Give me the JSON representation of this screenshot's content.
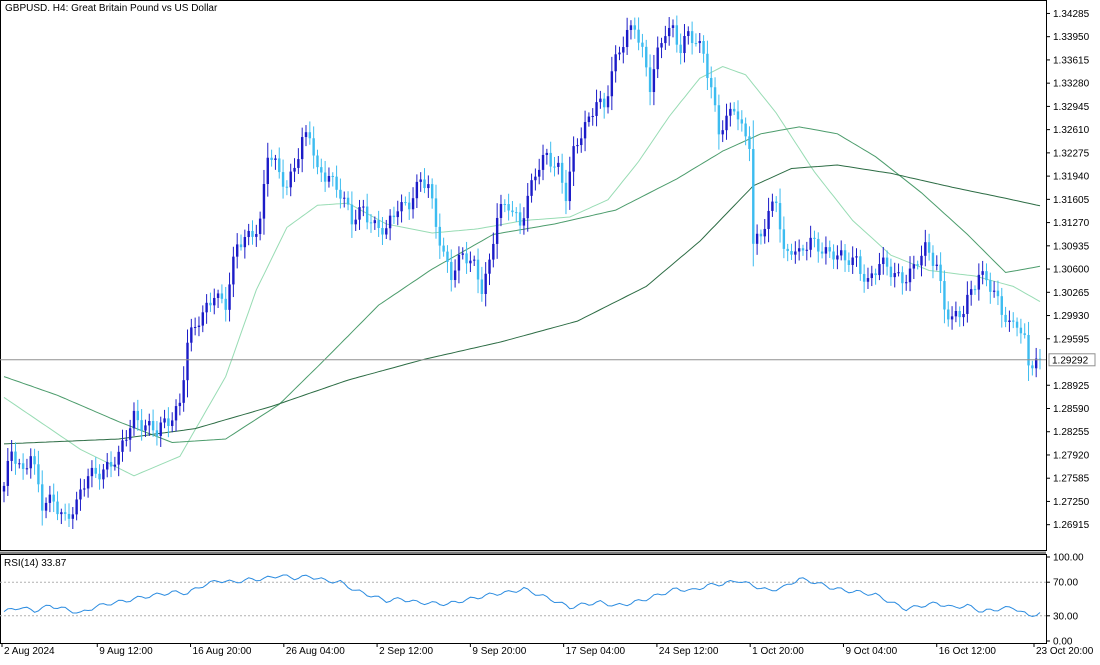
{
  "title": {
    "symbol": "GBPUSD.",
    "timeframe": "H4:",
    "description": "Great Britain Pound vs US Dollar"
  },
  "colors": {
    "background": "#ffffff",
    "bull_candle": "#1c1cc8",
    "bear_candle": "#3cbcf0",
    "ma_fast": "#98dcb4",
    "ma_mid": "#4c9c6c",
    "ma_slow": "#2c6c44",
    "rsi_line": "#2c8ce0",
    "bid_line": "#909090",
    "grid": "#c8c8c8"
  },
  "chart_data": [
    {
      "type": "candlestick",
      "name": "GBPUSD., H4 price",
      "ylim": [
        1.2655,
        1.3445
      ],
      "y_ticks": [
        "1.34285",
        "1.33950",
        "1.33615",
        "1.33280",
        "1.32945",
        "1.32610",
        "1.32275",
        "1.31940",
        "1.31605",
        "1.31270",
        "1.30935",
        "1.30600",
        "1.30265",
        "1.29930",
        "1.29595",
        "1.28925",
        "1.28590",
        "1.28255",
        "1.27920",
        "1.27585",
        "1.27250",
        "1.26915"
      ],
      "current_price_label": "1.29292",
      "current_price": 1.29292,
      "x_tick_labels": [
        "2 Aug 2024",
        "9 Aug 12:00",
        "16 Aug 20:00",
        "26 Aug 04:00",
        "2 Sep 12:00",
        "9 Sep 20:00",
        "17 Sep 04:00",
        "24 Sep 12:00",
        "1 Oct 20:00",
        "9 Oct 04:00",
        "16 Oct 12:00",
        "23 Oct 20:00"
      ],
      "close_anchors": [
        {
          "bar": 0,
          "close": 1.2742
        },
        {
          "bar": 2,
          "close": 1.2795
        },
        {
          "bar": 5,
          "close": 1.277
        },
        {
          "bar": 7,
          "close": 1.28
        },
        {
          "bar": 10,
          "close": 1.2715
        },
        {
          "bar": 13,
          "close": 1.2725
        },
        {
          "bar": 16,
          "close": 1.2705
        },
        {
          "bar": 19,
          "close": 1.2718
        },
        {
          "bar": 22,
          "close": 1.276
        },
        {
          "bar": 26,
          "close": 1.2775
        },
        {
          "bar": 30,
          "close": 1.2785
        },
        {
          "bar": 34,
          "close": 1.285
        },
        {
          "bar": 37,
          "close": 1.2838
        },
        {
          "bar": 40,
          "close": 1.2822
        },
        {
          "bar": 43,
          "close": 1.284
        },
        {
          "bar": 46,
          "close": 1.287
        },
        {
          "bar": 48,
          "close": 1.2955
        },
        {
          "bar": 52,
          "close": 1.299
        },
        {
          "bar": 55,
          "close": 1.303
        },
        {
          "bar": 58,
          "close": 1.301
        },
        {
          "bar": 61,
          "close": 1.309
        },
        {
          "bar": 64,
          "close": 1.311
        },
        {
          "bar": 67,
          "close": 1.313
        },
        {
          "bar": 69,
          "close": 1.3225
        },
        {
          "bar": 72,
          "close": 1.3195
        },
        {
          "bar": 74,
          "close": 1.318
        },
        {
          "bar": 76,
          "close": 1.3215
        },
        {
          "bar": 78,
          "close": 1.3245
        },
        {
          "bar": 80,
          "close": 1.325
        },
        {
          "bar": 82,
          "close": 1.3195
        },
        {
          "bar": 85,
          "close": 1.32
        },
        {
          "bar": 88,
          "close": 1.317
        },
        {
          "bar": 91,
          "close": 1.3125
        },
        {
          "bar": 94,
          "close": 1.315
        },
        {
          "bar": 97,
          "close": 1.3125
        },
        {
          "bar": 100,
          "close": 1.311
        },
        {
          "bar": 103,
          "close": 1.315
        },
        {
          "bar": 106,
          "close": 1.316
        },
        {
          "bar": 109,
          "close": 1.3185
        },
        {
          "bar": 111,
          "close": 1.3175
        },
        {
          "bar": 113,
          "close": 1.3125
        },
        {
          "bar": 115,
          "close": 1.3085
        },
        {
          "bar": 117,
          "close": 1.3055
        },
        {
          "bar": 120,
          "close": 1.3075
        },
        {
          "bar": 123,
          "close": 1.3065
        },
        {
          "bar": 125,
          "close": 1.3038
        },
        {
          "bar": 127,
          "close": 1.307
        },
        {
          "bar": 129,
          "close": 1.3135
        },
        {
          "bar": 132,
          "close": 1.315
        },
        {
          "bar": 135,
          "close": 1.313
        },
        {
          "bar": 137,
          "close": 1.3165
        },
        {
          "bar": 139,
          "close": 1.3195
        },
        {
          "bar": 142,
          "close": 1.322
        },
        {
          "bar": 145,
          "close": 1.321
        },
        {
          "bar": 147,
          "close": 1.317
        },
        {
          "bar": 149,
          "close": 1.3225
        },
        {
          "bar": 151,
          "close": 1.325
        },
        {
          "bar": 153,
          "close": 1.3275
        },
        {
          "bar": 155,
          "close": 1.331
        },
        {
          "bar": 157,
          "close": 1.3295
        },
        {
          "bar": 159,
          "close": 1.334
        },
        {
          "bar": 161,
          "close": 1.337
        },
        {
          "bar": 163,
          "close": 1.34
        },
        {
          "bar": 165,
          "close": 1.3418
        },
        {
          "bar": 167,
          "close": 1.3375
        },
        {
          "bar": 169,
          "close": 1.332
        },
        {
          "bar": 171,
          "close": 1.3365
        },
        {
          "bar": 173,
          "close": 1.3405
        },
        {
          "bar": 175,
          "close": 1.341
        },
        {
          "bar": 177,
          "close": 1.338
        },
        {
          "bar": 179,
          "close": 1.3395
        },
        {
          "bar": 181,
          "close": 1.3382
        },
        {
          "bar": 183,
          "close": 1.3372
        },
        {
          "bar": 185,
          "close": 1.3325
        },
        {
          "bar": 187,
          "close": 1.3262
        },
        {
          "bar": 189,
          "close": 1.327
        },
        {
          "bar": 191,
          "close": 1.329
        },
        {
          "bar": 193,
          "close": 1.3262
        },
        {
          "bar": 195,
          "close": 1.3248
        },
        {
          "bar": 196,
          "close": 1.31
        },
        {
          "bar": 198,
          "close": 1.311
        },
        {
          "bar": 200,
          "close": 1.3132
        },
        {
          "bar": 202,
          "close": 1.316
        },
        {
          "bar": 204,
          "close": 1.3085
        },
        {
          "bar": 206,
          "close": 1.3095
        },
        {
          "bar": 208,
          "close": 1.308
        },
        {
          "bar": 211,
          "close": 1.3095
        },
        {
          "bar": 214,
          "close": 1.3092
        },
        {
          "bar": 217,
          "close": 1.3085
        },
        {
          "bar": 220,
          "close": 1.3068
        },
        {
          "bar": 223,
          "close": 1.3072
        },
        {
          "bar": 226,
          "close": 1.3045
        },
        {
          "bar": 229,
          "close": 1.3065
        },
        {
          "bar": 232,
          "close": 1.3055
        },
        {
          "bar": 235,
          "close": 1.305
        },
        {
          "bar": 238,
          "close": 1.306
        },
        {
          "bar": 241,
          "close": 1.3085
        },
        {
          "bar": 244,
          "close": 1.307
        },
        {
          "bar": 246,
          "close": 1.301
        },
        {
          "bar": 248,
          "close": 1.2985
        },
        {
          "bar": 251,
          "close": 1.2995
        },
        {
          "bar": 253,
          "close": 1.303
        },
        {
          "bar": 255,
          "close": 1.3058
        },
        {
          "bar": 257,
          "close": 1.3048
        },
        {
          "bar": 259,
          "close": 1.302
        },
        {
          "bar": 261,
          "close": 1.2995
        },
        {
          "bar": 263,
          "close": 1.298
        },
        {
          "bar": 265,
          "close": 1.299
        },
        {
          "bar": 267,
          "close": 1.2958
        },
        {
          "bar": 268,
          "close": 1.292
        },
        {
          "bar": 270,
          "close": 1.2922
        },
        {
          "bar": 271,
          "close": 1.29292
        }
      ],
      "moving_averages": [
        {
          "name": "fast",
          "color": "#98dcb4",
          "points": [
            [
              0,
              1.2875
            ],
            [
              20,
              1.28
            ],
            [
              34,
              1.2762
            ],
            [
              46,
              1.279
            ],
            [
              58,
              1.2905
            ],
            [
              66,
              1.303
            ],
            [
              74,
              1.312
            ],
            [
              82,
              1.3152
            ],
            [
              90,
              1.3155
            ],
            [
              100,
              1.3125
            ],
            [
              112,
              1.3112
            ],
            [
              124,
              1.3118
            ],
            [
              136,
              1.313
            ],
            [
              148,
              1.3135
            ],
            [
              158,
              1.316
            ],
            [
              166,
              1.3215
            ],
            [
              174,
              1.328
            ],
            [
              182,
              1.3335
            ],
            [
              188,
              1.3352
            ],
            [
              194,
              1.334
            ],
            [
              202,
              1.3285
            ],
            [
              212,
              1.32
            ],
            [
              222,
              1.313
            ],
            [
              232,
              1.308
            ],
            [
              242,
              1.3058
            ],
            [
              254,
              1.305
            ],
            [
              264,
              1.3035
            ],
            [
              272,
              1.301
            ]
          ]
        },
        {
          "name": "mid",
          "color": "#4c9c6c",
          "points": [
            [
              0,
              1.2905
            ],
            [
              14,
              1.2878
            ],
            [
              30,
              1.284
            ],
            [
              44,
              1.281
            ],
            [
              58,
              1.2815
            ],
            [
              72,
              1.2865
            ],
            [
              84,
              1.293
            ],
            [
              98,
              1.3008
            ],
            [
              112,
              1.306
            ],
            [
              128,
              1.311
            ],
            [
              144,
              1.3125
            ],
            [
              160,
              1.3145
            ],
            [
              176,
              1.319
            ],
            [
              188,
              1.323
            ],
            [
              198,
              1.3255
            ],
            [
              208,
              1.3265
            ],
            [
              218,
              1.3255
            ],
            [
              228,
              1.3222
            ],
            [
              240,
              1.317
            ],
            [
              252,
              1.311
            ],
            [
              262,
              1.3055
            ],
            [
              272,
              1.3065
            ]
          ]
        },
        {
          "name": "slow",
          "color": "#2c6c44",
          "points": [
            [
              0,
              1.2808
            ],
            [
              30,
              1.2815
            ],
            [
              50,
              1.283
            ],
            [
              70,
              1.2862
            ],
            [
              90,
              1.29
            ],
            [
              110,
              1.293
            ],
            [
              130,
              1.2955
            ],
            [
              150,
              1.2985
            ],
            [
              168,
              1.3035
            ],
            [
              182,
              1.31
            ],
            [
              196,
              1.318
            ],
            [
              206,
              1.3205
            ],
            [
              218,
              1.321
            ],
            [
              232,
              1.3198
            ],
            [
              248,
              1.3178
            ],
            [
              262,
              1.3162
            ],
            [
              272,
              1.315
            ]
          ]
        }
      ]
    },
    {
      "type": "line",
      "name": "RSI(14)",
      "label": "RSI(14) 33.87",
      "ylim": [
        0,
        100
      ],
      "y_ticks": [
        "100.00",
        "70.00",
        "30.00",
        "0.00"
      ],
      "levels": [
        30,
        70
      ],
      "current_value": 33.87,
      "points": [
        [
          0,
          35
        ],
        [
          4,
          40
        ],
        [
          8,
          36
        ],
        [
          12,
          42
        ],
        [
          16,
          38
        ],
        [
          20,
          33
        ],
        [
          24,
          41
        ],
        [
          28,
          45
        ],
        [
          32,
          48
        ],
        [
          36,
          52
        ],
        [
          40,
          55
        ],
        [
          44,
          58
        ],
        [
          48,
          57
        ],
        [
          52,
          66
        ],
        [
          56,
          72
        ],
        [
          60,
          70
        ],
        [
          64,
          73
        ],
        [
          68,
          74
        ],
        [
          72,
          78
        ],
        [
          76,
          75
        ],
        [
          80,
          77
        ],
        [
          84,
          72
        ],
        [
          88,
          70
        ],
        [
          92,
          60
        ],
        [
          96,
          54
        ],
        [
          100,
          48
        ],
        [
          104,
          50
        ],
        [
          108,
          46
        ],
        [
          112,
          45
        ],
        [
          116,
          44
        ],
        [
          120,
          48
        ],
        [
          124,
          52
        ],
        [
          128,
          56
        ],
        [
          132,
          58
        ],
        [
          136,
          62
        ],
        [
          140,
          55
        ],
        [
          144,
          48
        ],
        [
          148,
          40
        ],
        [
          152,
          44
        ],
        [
          156,
          46
        ],
        [
          160,
          42
        ],
        [
          164,
          45
        ],
        [
          168,
          50
        ],
        [
          172,
          56
        ],
        [
          176,
          62
        ],
        [
          180,
          60
        ],
        [
          184,
          66
        ],
        [
          188,
          68
        ],
        [
          192,
          72
        ],
        [
          196,
          66
        ],
        [
          200,
          60
        ],
        [
          204,
          64
        ],
        [
          208,
          74
        ],
        [
          212,
          70
        ],
        [
          216,
          64
        ],
        [
          220,
          60
        ],
        [
          224,
          58
        ],
        [
          228,
          55
        ],
        [
          232,
          46
        ],
        [
          236,
          38
        ],
        [
          240,
          42
        ],
        [
          244,
          45
        ],
        [
          248,
          40
        ],
        [
          252,
          42
        ],
        [
          256,
          35
        ],
        [
          260,
          38
        ],
        [
          264,
          40
        ],
        [
          268,
          30
        ],
        [
          272,
          33.87
        ]
      ]
    }
  ]
}
